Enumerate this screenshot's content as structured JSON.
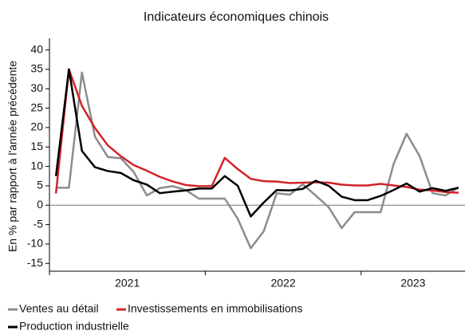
{
  "chart_data": {
    "type": "line",
    "title": "Indicateurs économiques chinois",
    "y_label": "En % par rapport à l'année précédente",
    "categories": [
      null,
      null,
      null,
      null,
      null,
      null,
      "2021",
      null,
      null,
      null,
      null,
      null,
      null,
      null,
      null,
      null,
      null,
      null,
      "2022",
      null,
      null,
      null,
      null,
      null,
      null,
      null,
      null,
      null,
      "2023",
      null,
      null,
      null
    ],
    "series": [
      {
        "name": "Ventes au détail",
        "color": "#8c8c8c",
        "values": [
          4.5,
          4.5,
          34.2,
          17.7,
          12.4,
          12.1,
          8.5,
          2.5,
          4.4,
          4.9,
          3.9,
          1.7,
          1.7,
          1.7,
          -3.5,
          -11.1,
          -6.7,
          3.1,
          2.7,
          5.4,
          2.5,
          -0.5,
          -5.9,
          -1.8,
          -1.8,
          -1.8,
          10.6,
          18.4,
          12.7,
          3.1,
          2.5,
          4.6
        ]
      },
      {
        "name": "Investissements en immobilisations",
        "color": "#d2232a",
        "values": [
          3,
          35,
          25.6,
          19.9,
          15.4,
          12.6,
          10.3,
          8.9,
          7.3,
          6.1,
          5.2,
          4.9,
          4.9,
          12.2,
          9.3,
          6.8,
          6.2,
          6.1,
          5.7,
          5.8,
          5.9,
          5.8,
          5.3,
          5.1,
          5.1,
          5.5,
          5.1,
          4.7,
          4.0,
          3.8,
          3.4,
          3.2
        ]
      },
      {
        "name": "Production industrielle",
        "color": "#000000",
        "values": [
          7.5,
          35,
          14,
          9.8,
          8.8,
          8.3,
          6.4,
          5.3,
          3.1,
          3.5,
          3.8,
          4.3,
          4.3,
          7.5,
          5.0,
          -2.9,
          0.7,
          3.9,
          3.8,
          4.2,
          6.3,
          5.0,
          2.2,
          1.3,
          1.3,
          2.4,
          3.9,
          5.6,
          3.5,
          4.4,
          3.7,
          4.5
        ]
      }
    ],
    "ylim": [
      -17,
      43
    ],
    "yticks": [
      -15,
      -10,
      -5,
      0,
      5,
      10,
      15,
      20,
      25,
      30,
      35,
      40
    ]
  }
}
